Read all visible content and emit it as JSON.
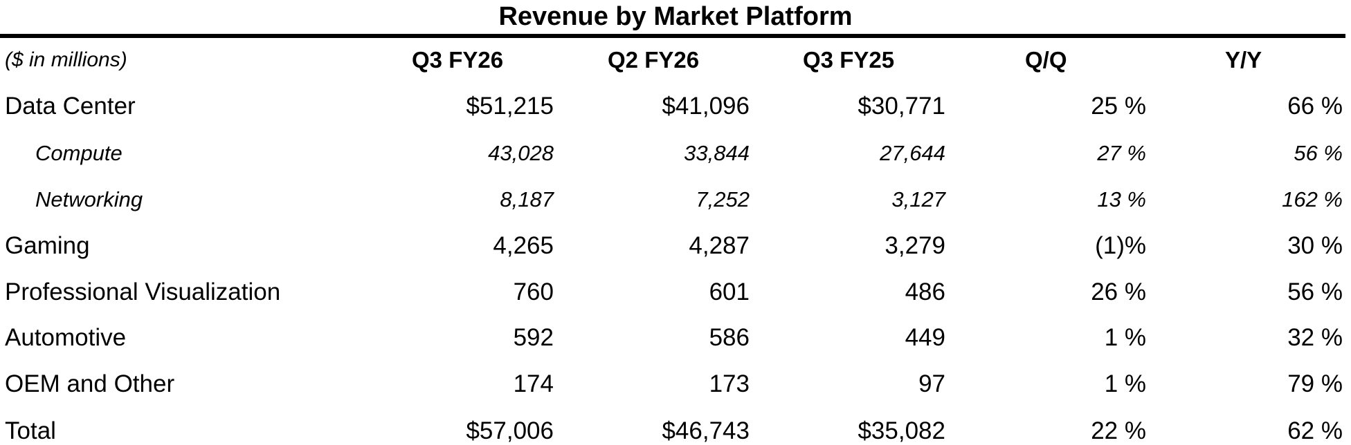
{
  "header": {
    "title": "Revenue by Market Platform"
  },
  "table": {
    "columns": [
      "($ in millions)",
      "Q3 FY26",
      "Q2 FY26",
      "Q3 FY25",
      "Q/Q",
      "Y/Y"
    ],
    "rows": [
      [
        "Data Center",
        "$51,215",
        "$41,096",
        "$30,771",
        "25 %",
        "66 %"
      ],
      [
        "Compute",
        "43,028",
        "33,844",
        "27,644",
        "27 %",
        "56 %"
      ],
      [
        "Networking",
        "8,187",
        "7,252",
        "3,127",
        "13 %",
        "162 %"
      ],
      [
        "Gaming",
        "4,265",
        "4,287",
        "3,279",
        "(1)%",
        "30 %"
      ],
      [
        "Professional Visualization",
        "760",
        "601",
        "486",
        "26 %",
        "56 %"
      ],
      [
        "Automotive",
        "592",
        "586",
        "449",
        "1 %",
        "32 %"
      ],
      [
        "OEM and Other",
        "174",
        "173",
        "97",
        "1 %",
        "79 %"
      ],
      [
        "Total",
        "$57,006",
        "$46,743",
        "$35,082",
        "22 %",
        "62 %"
      ]
    ]
  }
}
